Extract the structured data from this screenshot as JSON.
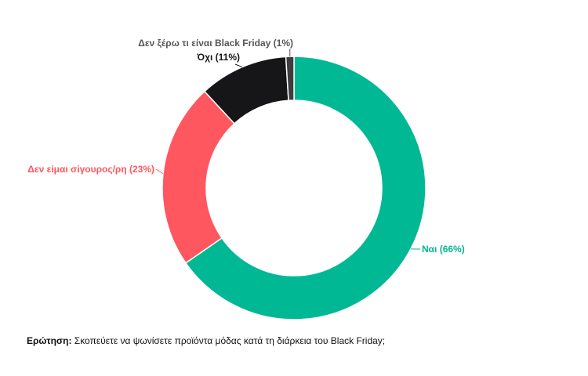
{
  "chart_data": {
    "type": "pie",
    "donut": true,
    "slices": [
      {
        "label": "Ναι (66%)",
        "value": 66,
        "color": "#00b894"
      },
      {
        "label": "Δεν είμαι σίγουρος/ρη (23%)",
        "value": 23,
        "color": "#ff575f"
      },
      {
        "label": "Όχι (11%)",
        "value": 11,
        "color": "#161618"
      },
      {
        "label": "Δεν ξέρω τι είναι Black Friday (1%)",
        "value": 1,
        "color": "#3d3d40"
      }
    ],
    "label_colors": [
      "#00b894",
      "#ff575f",
      "#161618",
      "#555558"
    ]
  },
  "footer": {
    "question_label": "Ερώτηση:",
    "question_text": " Σκοπεύετε να ψωνίσετε προϊόντα μόδας κατά τη διάρκεια του Black Friday;"
  }
}
